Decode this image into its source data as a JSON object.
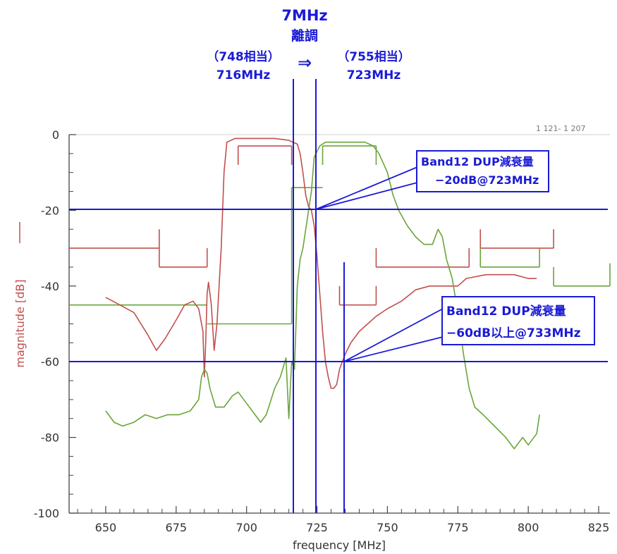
{
  "chart_data": {
    "type": "line",
    "title": "",
    "xlabel": "frequency [MHz]",
    "ylabel": "magnitude [dB]",
    "xlim": [
      637,
      829
    ],
    "ylim": [
      -100,
      0
    ],
    "x_ticks": [
      650,
      675,
      700,
      725,
      750,
      775,
      800,
      825
    ],
    "y_ticks": [
      0,
      -20,
      -40,
      -60,
      -80,
      -100
    ],
    "x_tick_labels": [
      "650",
      "675",
      "700",
      "725",
      "750",
      "775",
      "800",
      "825"
    ],
    "y_tick_labels": [
      "0",
      "-20",
      "-40",
      "-60",
      "-80",
      "-100"
    ],
    "grid": false,
    "colors": {
      "tx_filter": "#c0504d",
      "rx_filter": "#6aa53a",
      "annotation": "#1a1ad6",
      "axis": "#444444"
    },
    "series": [
      {
        "points": [
          [
            650,
            -43
          ],
          [
            655,
            -45
          ],
          [
            660,
            -47
          ],
          [
            665,
            -53
          ],
          [
            668,
            -57
          ],
          [
            671,
            -54
          ],
          [
            675,
            -49
          ],
          [
            678,
            -45
          ],
          [
            681,
            -44
          ],
          [
            683,
            -46
          ],
          [
            684.5,
            -52
          ],
          [
            685,
            -64
          ],
          [
            685.5,
            -55
          ],
          [
            686,
            -42
          ],
          [
            686.5,
            -39
          ],
          [
            687.5,
            -45
          ],
          [
            688.5,
            -57
          ],
          [
            689.5,
            -50
          ],
          [
            691,
            -30
          ],
          [
            692,
            -10
          ],
          [
            693,
            -2
          ],
          [
            696,
            -1
          ],
          [
            700,
            -1
          ],
          [
            705,
            -1
          ],
          [
            710,
            -1
          ],
          [
            715,
            -1.5
          ],
          [
            718,
            -2.5
          ],
          [
            719,
            -5
          ],
          [
            720,
            -10
          ],
          [
            721,
            -16
          ],
          [
            722,
            -19
          ],
          [
            723,
            -20
          ],
          [
            724,
            -24
          ],
          [
            725,
            -32
          ],
          [
            726,
            -42
          ],
          [
            727,
            -52
          ],
          [
            728,
            -60
          ],
          [
            729,
            -64
          ],
          [
            730,
            -67
          ],
          [
            731,
            -67
          ],
          [
            732,
            -66
          ],
          [
            733,
            -62
          ],
          [
            734,
            -60
          ],
          [
            735,
            -58
          ],
          [
            737,
            -55
          ],
          [
            740,
            -52
          ],
          [
            743,
            -50
          ],
          [
            746,
            -48
          ],
          [
            750,
            -46
          ],
          [
            755,
            -44
          ],
          [
            760,
            -41
          ],
          [
            765,
            -40
          ],
          [
            770,
            -40
          ],
          [
            775,
            -40
          ],
          [
            778,
            -38
          ],
          [
            785,
            -37
          ],
          [
            795,
            -37
          ],
          [
            800,
            -38
          ],
          [
            803,
            -38
          ]
        ]
      },
      {
        "points": [
          [
            650,
            -73
          ],
          [
            653,
            -76
          ],
          [
            656,
            -77
          ],
          [
            660,
            -76
          ],
          [
            664,
            -74
          ],
          [
            668,
            -75
          ],
          [
            672,
            -74
          ],
          [
            676,
            -74
          ],
          [
            680,
            -73
          ],
          [
            683,
            -70
          ],
          [
            684,
            -64
          ],
          [
            685,
            -62
          ],
          [
            686,
            -63
          ],
          [
            687,
            -67
          ],
          [
            689,
            -72
          ],
          [
            692,
            -72
          ],
          [
            695,
            -69
          ],
          [
            697,
            -68
          ],
          [
            700,
            -71
          ],
          [
            703,
            -74
          ],
          [
            705,
            -76
          ],
          [
            707,
            -74
          ],
          [
            710,
            -67
          ],
          [
            712,
            -64
          ],
          [
            714,
            -59
          ],
          [
            715,
            -75
          ],
          [
            716,
            -60
          ],
          [
            717,
            -62
          ],
          [
            718,
            -40
          ],
          [
            719,
            -33
          ],
          [
            720,
            -30
          ],
          [
            721,
            -25
          ],
          [
            722,
            -20
          ],
          [
            723,
            -15
          ],
          [
            724,
            -6
          ],
          [
            726,
            -3
          ],
          [
            728,
            -2
          ],
          [
            735,
            -2
          ],
          [
            742,
            -2
          ],
          [
            745,
            -3
          ],
          [
            747,
            -5
          ],
          [
            750,
            -10
          ],
          [
            752,
            -16
          ],
          [
            754,
            -20
          ],
          [
            757,
            -24
          ],
          [
            760,
            -27
          ],
          [
            763,
            -29
          ],
          [
            766,
            -29
          ],
          [
            768,
            -25
          ],
          [
            769.5,
            -27
          ],
          [
            771,
            -33
          ],
          [
            773,
            -38
          ],
          [
            775,
            -47
          ],
          [
            777,
            -58
          ],
          [
            779,
            -67
          ],
          [
            781,
            -72
          ],
          [
            784,
            -74
          ],
          [
            788,
            -77
          ],
          [
            792,
            -80
          ],
          [
            795,
            -83
          ],
          [
            798,
            -80
          ],
          [
            800,
            -82
          ],
          [
            803,
            -79
          ],
          [
            804,
            -74
          ]
        ]
      }
    ],
    "masks": [
      {
        "segments": [
          [
            [
              637,
              -30
            ],
            [
              669,
              -30
            ]
          ],
          [
            [
              669,
              -25
            ],
            [
              669,
              -35
            ]
          ],
          [
            [
              669,
              -35
            ],
            [
              686,
              -35
            ]
          ],
          [
            [
              686,
              -35
            ],
            [
              686,
              -30
            ]
          ],
          [
            [
              697,
              -8
            ],
            [
              697,
              -3
            ]
          ],
          [
            [
              697,
              -3
            ],
            [
              716,
              -3
            ]
          ],
          [
            [
              716,
              -3
            ],
            [
              716,
              -8
            ]
          ],
          [
            [
              733,
              -40
            ],
            [
              733,
              -45
            ]
          ],
          [
            [
              733,
              -45
            ],
            [
              746,
              -45
            ]
          ],
          [
            [
              746,
              -45
            ],
            [
              746,
              -40
            ]
          ],
          [
            [
              746,
              -30
            ],
            [
              746,
              -35
            ]
          ],
          [
            [
              746,
              -35
            ],
            [
              779,
              -35
            ]
          ],
          [
            [
              779,
              -35
            ],
            [
              779,
              -30
            ]
          ],
          [
            [
              783,
              -25
            ],
            [
              783,
              -30
            ]
          ],
          [
            [
              783,
              -30
            ],
            [
              809,
              -30
            ]
          ],
          [
            [
              809,
              -30
            ],
            [
              809,
              -25
            ]
          ]
        ]
      },
      {
        "segments": [
          [
            [
              637,
              -45
            ],
            [
              686,
              -45
            ]
          ],
          [
            [
              686,
              -50
            ],
            [
              716,
              -50
            ]
          ],
          [
            [
              716,
              -14
            ],
            [
              716,
              -50
            ]
          ],
          [
            [
              716,
              -14
            ],
            [
              727,
              -14
            ]
          ],
          [
            [
              727,
              -8
            ],
            [
              727,
              -3
            ]
          ],
          [
            [
              727,
              -3
            ],
            [
              746,
              -3
            ]
          ],
          [
            [
              746,
              -3
            ],
            [
              746,
              -8
            ]
          ],
          [
            [
              783,
              -30
            ],
            [
              783,
              -35
            ]
          ],
          [
            [
              783,
              -35
            ],
            [
              804,
              -35
            ]
          ],
          [
            [
              804,
              -35
            ],
            [
              804,
              -30
            ]
          ],
          [
            [
              809,
              -35
            ],
            [
              809,
              -40
            ]
          ],
          [
            [
              809,
              -40
            ],
            [
              829,
              -40
            ]
          ],
          [
            [
              829,
              -40
            ],
            [
              829,
              -34
            ]
          ]
        ]
      }
    ]
  },
  "annotations": {
    "detune_title": "7MHz",
    "detune_label": "離調",
    "arrow": "⇒",
    "left_channel_paren": "（748相当）",
    "left_channel_freq": "716MHz",
    "right_channel_paren": "（755相当）",
    "right_channel_freq": "723MHz",
    "box1_line1": "Band12 DUP減衰量",
    "box1_line2": "−20dB@723MHz",
    "box2_line1": "Band12 DUP減衰量",
    "box2_line2": "−60dB以上@733MHz",
    "corner_text": "1  121-  1  207"
  }
}
